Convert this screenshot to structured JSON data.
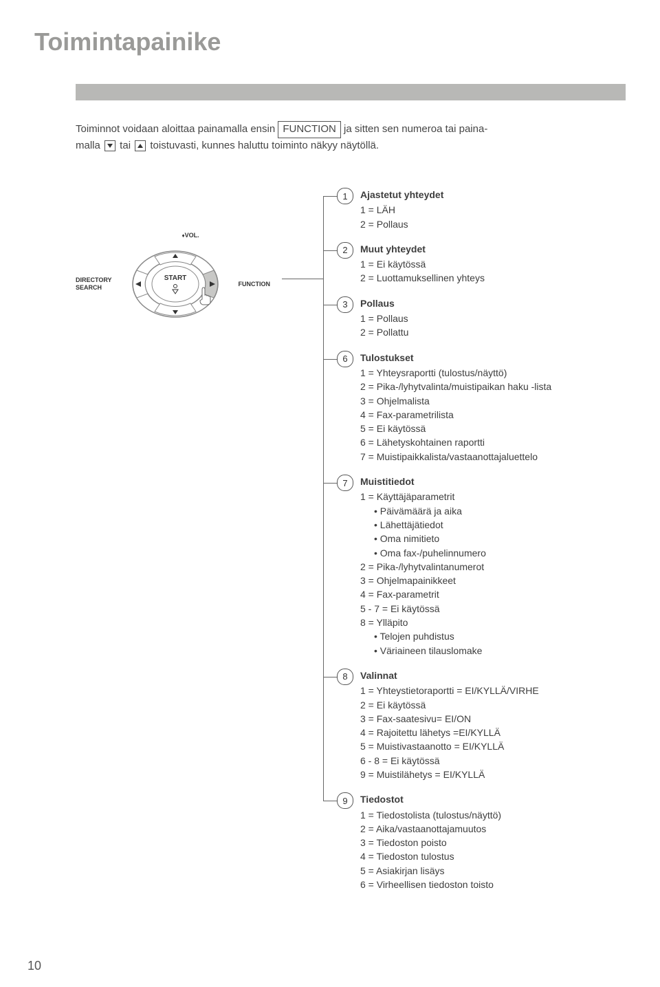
{
  "title": "Toimintapainike",
  "intro": {
    "line1a": "Toiminnot voidaan aloittaa painamalla ensin ",
    "boxed": "FUNCTION",
    "line1b": " ja sitten sen numeroa tai paina-",
    "line2a": "malla ",
    "line2b": " tai ",
    "line2c": " toistuvasti, kunnes haluttu toiminto näkyy näytöllä."
  },
  "controller": {
    "left_l1": "DIRECTORY",
    "left_l2": "SEARCH",
    "center": "START",
    "vol": "VOL.",
    "right": "FUNCTION"
  },
  "menus": [
    {
      "num": "1",
      "title": "Ajastetut yhteydet",
      "items": [
        "1 = LÄH",
        "2 = Pollaus"
      ]
    },
    {
      "num": "2",
      "title": "Muut yhteydet",
      "items": [
        "1 = Ei käytössä",
        "2 = Luottamuksellinen yhteys"
      ]
    },
    {
      "num": "3",
      "title": "Pollaus",
      "items": [
        "1 = Pollaus",
        "2 = Pollattu"
      ]
    },
    {
      "num": "6",
      "title": "Tulostukset",
      "items": [
        "1 = Yhteysraportti (tulostus/näyttö)",
        "2 = Pika-/lyhytvalinta/muistipaikan haku -lista",
        "3 = Ohjelmalista",
        "4 = Fax-parametrilista",
        "5 = Ei käytössä",
        "6 = Lähetyskohtainen raportti",
        "7 = Muistipaikkalista/vastaanottajaluettelo"
      ]
    },
    {
      "num": "7",
      "title": "Muistitiedot",
      "items": [
        "1 = Käyttäjäparametrit"
      ],
      "subitems1": [
        "• Päivämäärä ja aika",
        "• Lähettäjätiedot",
        "• Oma nimitieto",
        "• Oma fax-/puhelinnumero"
      ],
      "items2": [
        "2 = Pika-/lyhytvalintanumerot",
        "3 = Ohjelmapainikkeet",
        "4 = Fax-parametrit",
        "5 - 7 = Ei käytössä",
        "8 = Ylläpito"
      ],
      "subitems2": [
        "• Telojen puhdistus",
        "• Väriaineen tilauslomake"
      ]
    },
    {
      "num": "8",
      "title": "Valinnat",
      "items": [
        "1 = Yhteystietoraportti = EI/KYLLÄ/VIRHE",
        "2 = Ei käytössä",
        "3 = Fax-saatesivu= EI/ON",
        "4 = Rajoitettu lähetys =EI/KYLLÄ",
        "5 = Muistivastaanotto = EI/KYLLÄ",
        "6 - 8 = Ei käytössä",
        "9 = Muistilähetys = EI/KYLLÄ"
      ]
    },
    {
      "num": "9",
      "title": "Tiedostot",
      "items": [
        "1 = Tiedostolista (tulostus/näyttö)",
        "2 = Aika/vastaanottajamuutos",
        "3 = Tiedoston poisto",
        "4 = Tiedoston tulostus",
        "5 = Asiakirjan lisäys",
        "6 = Virheellisen tiedoston toisto"
      ]
    }
  ],
  "page_number": "10",
  "colors": {
    "title_grey": "#9a9a98",
    "bar_grey": "#b8b8b6",
    "line": "#666666",
    "wheel_fill": "#ffffff",
    "wheel_accent": "#c8c8c6",
    "wheel_dark": "#7d7d7b"
  }
}
